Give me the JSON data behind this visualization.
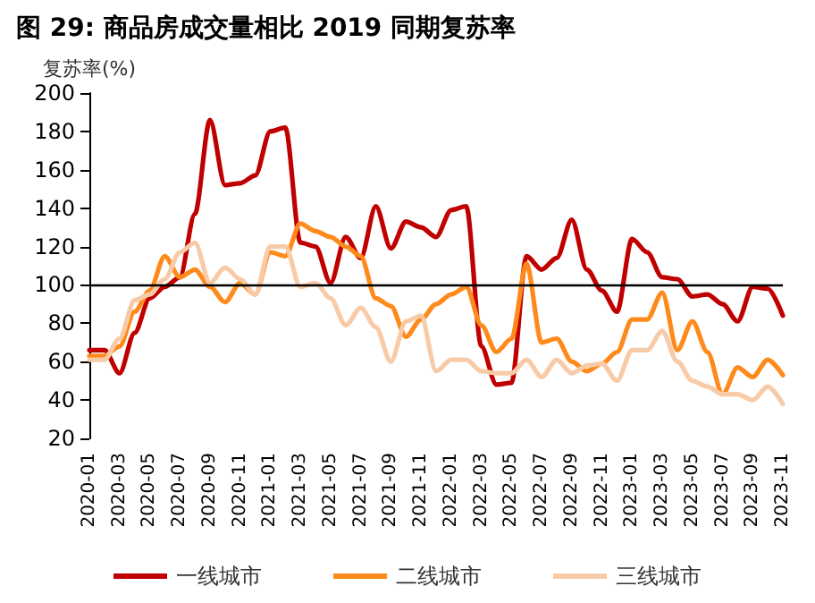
{
  "chart_data": {
    "type": "line",
    "title": "图 29: 商品房成交量相比 2019 同期复苏率",
    "ylabel": "复苏率(%)",
    "categories": [
      "2020-01",
      null,
      "2020-03",
      null,
      "2020-05",
      null,
      "2020-07",
      null,
      "2020-09",
      null,
      "2020-11",
      null,
      "2021-01",
      null,
      "2021-03",
      null,
      "2021-05",
      null,
      "2021-07",
      null,
      "2021-09",
      null,
      "2021-11",
      null,
      "2022-01",
      null,
      "2022-03",
      null,
      "2022-05",
      null,
      "2022-07",
      null,
      "2022-09",
      null,
      "2022-11",
      null,
      "2023-01",
      null,
      "2023-03",
      null,
      "2023-05",
      null,
      "2023-07",
      null,
      "2023-09",
      null,
      "2023-11"
    ],
    "series": [
      {
        "name": "一线城市",
        "color": "#c00000",
        "values": [
          66,
          66,
          54,
          75,
          93,
          99,
          104,
          137,
          186,
          152,
          153,
          157,
          180,
          182,
          122,
          120,
          101,
          125,
          114,
          141,
          119,
          133,
          130,
          125,
          139,
          141,
          68,
          48,
          49,
          115,
          108,
          114,
          134,
          108,
          97,
          86,
          124,
          117,
          104,
          103,
          94,
          95,
          90,
          81,
          99,
          98,
          84
        ]
      },
      {
        "name": "二线城市",
        "color": "#ff8a1c",
        "values": [
          63,
          63,
          68,
          86,
          97,
          115,
          104,
          108,
          99,
          91,
          101,
          95,
          117,
          115,
          132,
          128,
          125,
          120,
          115,
          93,
          89,
          73,
          82,
          90,
          95,
          99,
          79,
          65,
          72,
          111,
          70,
          72,
          60,
          55,
          59,
          65,
          82,
          82,
          96,
          66,
          81,
          65,
          43,
          57,
          52,
          61,
          53
        ]
      },
      {
        "name": "三线城市",
        "color": "#f8cba8",
        "values": [
          61,
          61,
          72,
          92,
          95,
          103,
          117,
          122,
          101,
          109,
          103,
          95,
          120,
          120,
          99,
          101,
          93,
          79,
          88,
          78,
          60,
          81,
          84,
          55,
          61,
          61,
          55,
          54,
          54,
          61,
          52,
          61,
          54,
          58,
          59,
          50,
          66,
          66,
          76,
          60,
          50,
          47,
          43,
          43,
          40,
          47,
          38
        ]
      }
    ],
    "ylim": [
      20,
      200
    ],
    "yticks": [
      20,
      40,
      60,
      80,
      100,
      120,
      140,
      160,
      180,
      200
    ],
    "grid": false,
    "legend": "bottom",
    "marker": "none",
    "line_style": "solid",
    "ref_lines": [
      {
        "axis": "y",
        "value": 100,
        "color": "#000000"
      }
    ]
  }
}
